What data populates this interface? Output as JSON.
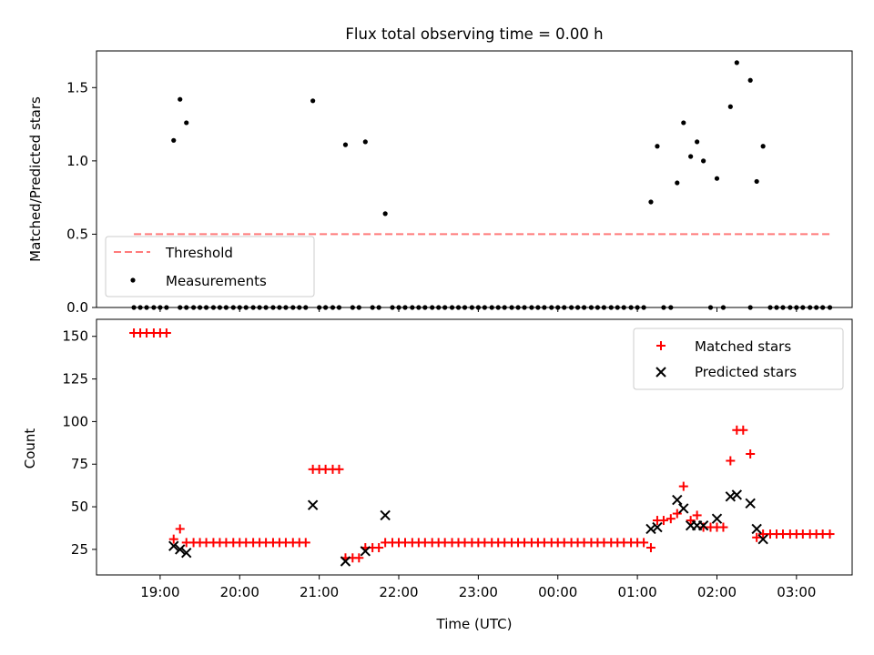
{
  "figure": {
    "title": "Flux total observing time = 0.00 h",
    "xlabel": "Time (UTC)"
  },
  "colors": {
    "threshold": "#ff7a7a",
    "measurements": "#000000",
    "matched": "#ff0000",
    "predicted": "#000000"
  },
  "chart_data": [
    {
      "type": "scatter",
      "name": "ratio-panel",
      "ylabel": "Matched/Predicted stars",
      "xlim": [
        18.2,
        27.7
      ],
      "ylim": [
        0,
        1.75
      ],
      "yticks": [
        0.0,
        0.5,
        1.0,
        1.5
      ],
      "ytick_labels": [
        "0.0",
        "0.5",
        "1.0",
        "1.5"
      ],
      "legend": {
        "placement": "lower-left",
        "entries": [
          "Threshold",
          "Measurements"
        ]
      },
      "threshold": {
        "name": "Threshold",
        "value": 0.5,
        "x": [
          18.67,
          27.43
        ]
      },
      "series": [
        {
          "name": "Measurements",
          "x": [
            18.67,
            18.75,
            18.83,
            18.92,
            19.0,
            19.08,
            19.25,
            19.33,
            19.42,
            19.5,
            19.58,
            19.67,
            19.75,
            19.83,
            19.92,
            20.0,
            20.08,
            20.17,
            20.25,
            20.33,
            20.42,
            20.5,
            20.58,
            20.67,
            20.75,
            20.83,
            21.0,
            21.08,
            21.17,
            21.25,
            21.42,
            21.5,
            21.67,
            21.75,
            21.92,
            22.0,
            22.08,
            22.17,
            22.25,
            22.33,
            22.42,
            22.5,
            22.58,
            22.67,
            22.75,
            22.83,
            22.92,
            23.0,
            23.08,
            23.17,
            23.25,
            23.33,
            23.42,
            23.5,
            23.58,
            23.67,
            23.75,
            23.83,
            23.92,
            24.0,
            24.08,
            24.17,
            24.25,
            24.33,
            24.42,
            24.5,
            24.58,
            24.67,
            24.75,
            24.83,
            24.92,
            25.0,
            25.08,
            25.33,
            25.42,
            25.92,
            26.08,
            26.42,
            26.67,
            26.75,
            26.83,
            26.92,
            27.0,
            27.08,
            27.17,
            27.25,
            27.33,
            27.42,
            19.17,
            19.25,
            19.33,
            20.92,
            21.33,
            21.58,
            21.83,
            25.17,
            25.25,
            25.5,
            25.58,
            25.67,
            25.75,
            25.83,
            26.0,
            26.17,
            26.25,
            26.42,
            26.5,
            26.58
          ],
          "y": [
            0,
            0,
            0,
            0,
            0,
            0,
            0,
            0,
            0,
            0,
            0,
            0,
            0,
            0,
            0,
            0,
            0,
            0,
            0,
            0,
            0,
            0,
            0,
            0,
            0,
            0,
            0,
            0,
            0,
            0,
            0,
            0,
            0,
            0,
            0,
            0,
            0,
            0,
            0,
            0,
            0,
            0,
            0,
            0,
            0,
            0,
            0,
            0,
            0,
            0,
            0,
            0,
            0,
            0,
            0,
            0,
            0,
            0,
            0,
            0,
            0,
            0,
            0,
            0,
            0,
            0,
            0,
            0,
            0,
            0,
            0,
            0,
            0,
            0,
            0,
            0,
            0,
            0,
            0,
            0,
            0,
            0,
            0,
            0,
            0,
            0,
            0,
            0,
            1.14,
            1.42,
            1.26,
            1.41,
            1.11,
            1.13,
            0.64,
            0.72,
            1.1,
            0.85,
            1.26,
            1.03,
            1.13,
            1.0,
            0.88,
            1.37,
            1.67,
            1.55,
            0.86,
            1.1
          ]
        }
      ]
    },
    {
      "type": "scatter",
      "name": "count-panel",
      "ylabel": "Count",
      "xlim": [
        18.2,
        27.7
      ],
      "ylim": [
        10,
        160
      ],
      "yticks": [
        25,
        50,
        75,
        100,
        125,
        150
      ],
      "ytick_labels": [
        "25",
        "50",
        "75",
        "100",
        "125",
        "150"
      ],
      "xticks": [
        19,
        20,
        21,
        22,
        23,
        24,
        25,
        26,
        27
      ],
      "xtick_labels": [
        "19:00",
        "20:00",
        "21:00",
        "22:00",
        "23:00",
        "00:00",
        "01:00",
        "02:00",
        "03:00"
      ],
      "legend": {
        "placement": "upper-right",
        "entries": [
          "Matched stars",
          "Predicted stars"
        ]
      },
      "series": [
        {
          "name": "Matched stars",
          "marker": "plus",
          "x": [
            18.67,
            18.75,
            18.83,
            18.92,
            19.0,
            19.08,
            19.17,
            19.25,
            19.33,
            19.42,
            19.5,
            19.58,
            19.67,
            19.75,
            19.83,
            19.92,
            20.0,
            20.08,
            20.17,
            20.25,
            20.33,
            20.42,
            20.5,
            20.58,
            20.67,
            20.75,
            20.83,
            20.92,
            21.0,
            21.08,
            21.17,
            21.25,
            21.33,
            21.42,
            21.5,
            21.58,
            21.67,
            21.75,
            21.83,
            21.92,
            22.0,
            22.08,
            22.17,
            22.25,
            22.33,
            22.42,
            22.5,
            22.58,
            22.67,
            22.75,
            22.83,
            22.92,
            23.0,
            23.08,
            23.17,
            23.25,
            23.33,
            23.42,
            23.5,
            23.58,
            23.67,
            23.75,
            23.83,
            23.92,
            24.0,
            24.08,
            24.17,
            24.25,
            24.33,
            24.42,
            24.5,
            24.58,
            24.67,
            24.75,
            24.83,
            24.92,
            25.0,
            25.08,
            25.17,
            25.25,
            25.33,
            25.42,
            25.5,
            25.58,
            25.67,
            25.75,
            25.83,
            25.92,
            26.0,
            26.08,
            26.17,
            26.25,
            26.33,
            26.42,
            26.5,
            26.58,
            26.67,
            26.75,
            26.83,
            26.92,
            27.0,
            27.08,
            27.17,
            27.25,
            27.33,
            27.42
          ],
          "y": [
            152,
            152,
            152,
            152,
            152,
            152,
            31,
            37,
            29,
            29,
            29,
            29,
            29,
            29,
            29,
            29,
            29,
            29,
            29,
            29,
            29,
            29,
            29,
            29,
            29,
            29,
            29,
            72,
            72,
            72,
            72,
            72,
            20,
            20,
            20,
            26,
            26,
            26,
            29,
            29,
            29,
            29,
            29,
            29,
            29,
            29,
            29,
            29,
            29,
            29,
            29,
            29,
            29,
            29,
            29,
            29,
            29,
            29,
            29,
            29,
            29,
            29,
            29,
            29,
            29,
            29,
            29,
            29,
            29,
            29,
            29,
            29,
            29,
            29,
            29,
            29,
            29,
            29,
            26,
            42,
            42,
            43,
            46,
            62,
            42,
            45,
            38,
            38,
            38,
            38,
            77,
            95,
            95,
            81,
            32,
            34,
            34,
            34,
            34,
            34,
            34,
            34,
            34,
            34,
            34,
            34
          ]
        },
        {
          "name": "Predicted stars",
          "marker": "x",
          "x": [
            19.17,
            19.25,
            19.33,
            20.92,
            21.33,
            21.58,
            21.83,
            25.17,
            25.25,
            25.5,
            25.58,
            25.67,
            25.75,
            25.83,
            26.0,
            26.17,
            26.25,
            26.42,
            26.5,
            26.58
          ],
          "y": [
            27,
            25,
            23,
            51,
            18,
            24,
            45,
            37,
            38,
            54,
            49,
            39,
            39,
            39,
            43,
            56,
            57,
            52,
            37,
            31
          ]
        }
      ]
    }
  ]
}
